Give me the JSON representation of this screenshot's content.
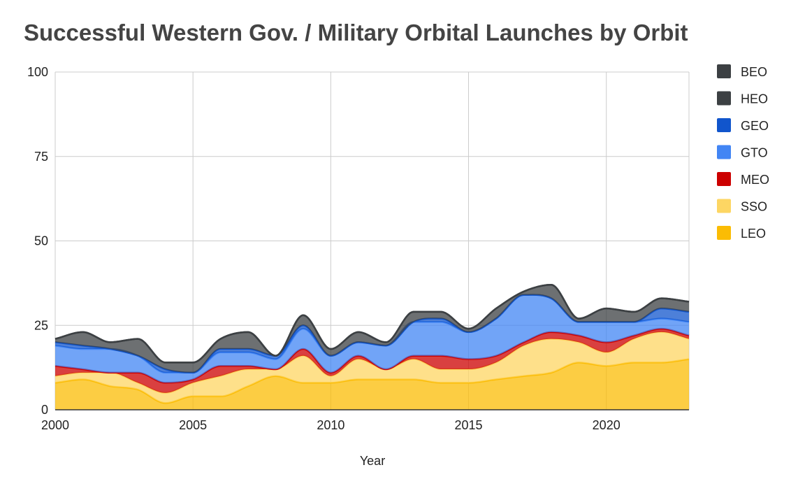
{
  "chart_data": {
    "type": "area",
    "stacked": true,
    "smooth": true,
    "title": "Successful Western Gov. / Military Orbital Launches by Orbit",
    "xlabel": "Year",
    "ylabel": "",
    "xlim": [
      2000,
      2023
    ],
    "ylim": [
      0,
      100
    ],
    "x_ticks": [
      "2000",
      "2005",
      "2010",
      "2015",
      "2020"
    ],
    "y_ticks": [
      "0",
      "25",
      "50",
      "75",
      "100"
    ],
    "grid": true,
    "legend_position": "right",
    "x": [
      2000,
      2001,
      2002,
      2003,
      2004,
      2005,
      2006,
      2007,
      2008,
      2009,
      2010,
      2011,
      2012,
      2013,
      2014,
      2015,
      2016,
      2017,
      2018,
      2019,
      2020,
      2021,
      2022,
      2023
    ],
    "series": [
      {
        "name": "LEO",
        "color": "#FBBC04",
        "values": [
          8,
          9,
          7,
          6,
          2,
          4,
          4,
          7,
          10,
          8,
          8,
          9,
          9,
          9,
          8,
          8,
          9,
          10,
          11,
          14,
          13,
          14,
          14,
          15
        ]
      },
      {
        "name": "SSO",
        "color": "#FDD663",
        "values": [
          2,
          2,
          4,
          2,
          3,
          4,
          6,
          5,
          2,
          8,
          2,
          6,
          3,
          6,
          4,
          4,
          5,
          9,
          10,
          6,
          4,
          7,
          9,
          6
        ]
      },
      {
        "name": "MEO",
        "color": "#CC0000",
        "values": [
          3,
          1,
          0,
          3,
          3,
          1,
          3,
          1,
          0,
          2,
          1,
          1,
          0,
          1,
          4,
          3,
          2,
          1,
          2,
          2,
          3,
          1,
          1,
          1
        ]
      },
      {
        "name": "GTO",
        "color": "#4285F4",
        "values": [
          6,
          6,
          7,
          5,
          3,
          2,
          4,
          4,
          3,
          6,
          5,
          4,
          7,
          10,
          10,
          8,
          11,
          14,
          10,
          4,
          6,
          4,
          3,
          4
        ]
      },
      {
        "name": "GEO",
        "color": "#1155CC",
        "values": [
          1,
          1,
          0,
          0,
          1,
          0,
          1,
          1,
          1,
          1,
          0,
          0,
          0,
          0,
          1,
          0,
          0,
          0,
          0,
          0,
          0,
          0,
          3,
          3
        ]
      },
      {
        "name": "HEO",
        "color": "#3C4043",
        "values": [
          1,
          4,
          2,
          5,
          2,
          3,
          3,
          5,
          0,
          3,
          2,
          3,
          1,
          3,
          2,
          1,
          3,
          1,
          4,
          1,
          4,
          3,
          3,
          3
        ]
      },
      {
        "name": "BEO",
        "color": "#3C4043",
        "values": [
          0,
          0,
          0,
          0,
          0,
          0,
          0,
          0,
          0,
          0,
          0,
          0,
          0,
          0,
          0,
          0,
          0,
          0,
          0,
          0,
          0,
          0,
          0,
          0
        ]
      }
    ],
    "legend_order": [
      "BEO",
      "HEO",
      "GEO",
      "GTO",
      "MEO",
      "SSO",
      "LEO"
    ]
  }
}
